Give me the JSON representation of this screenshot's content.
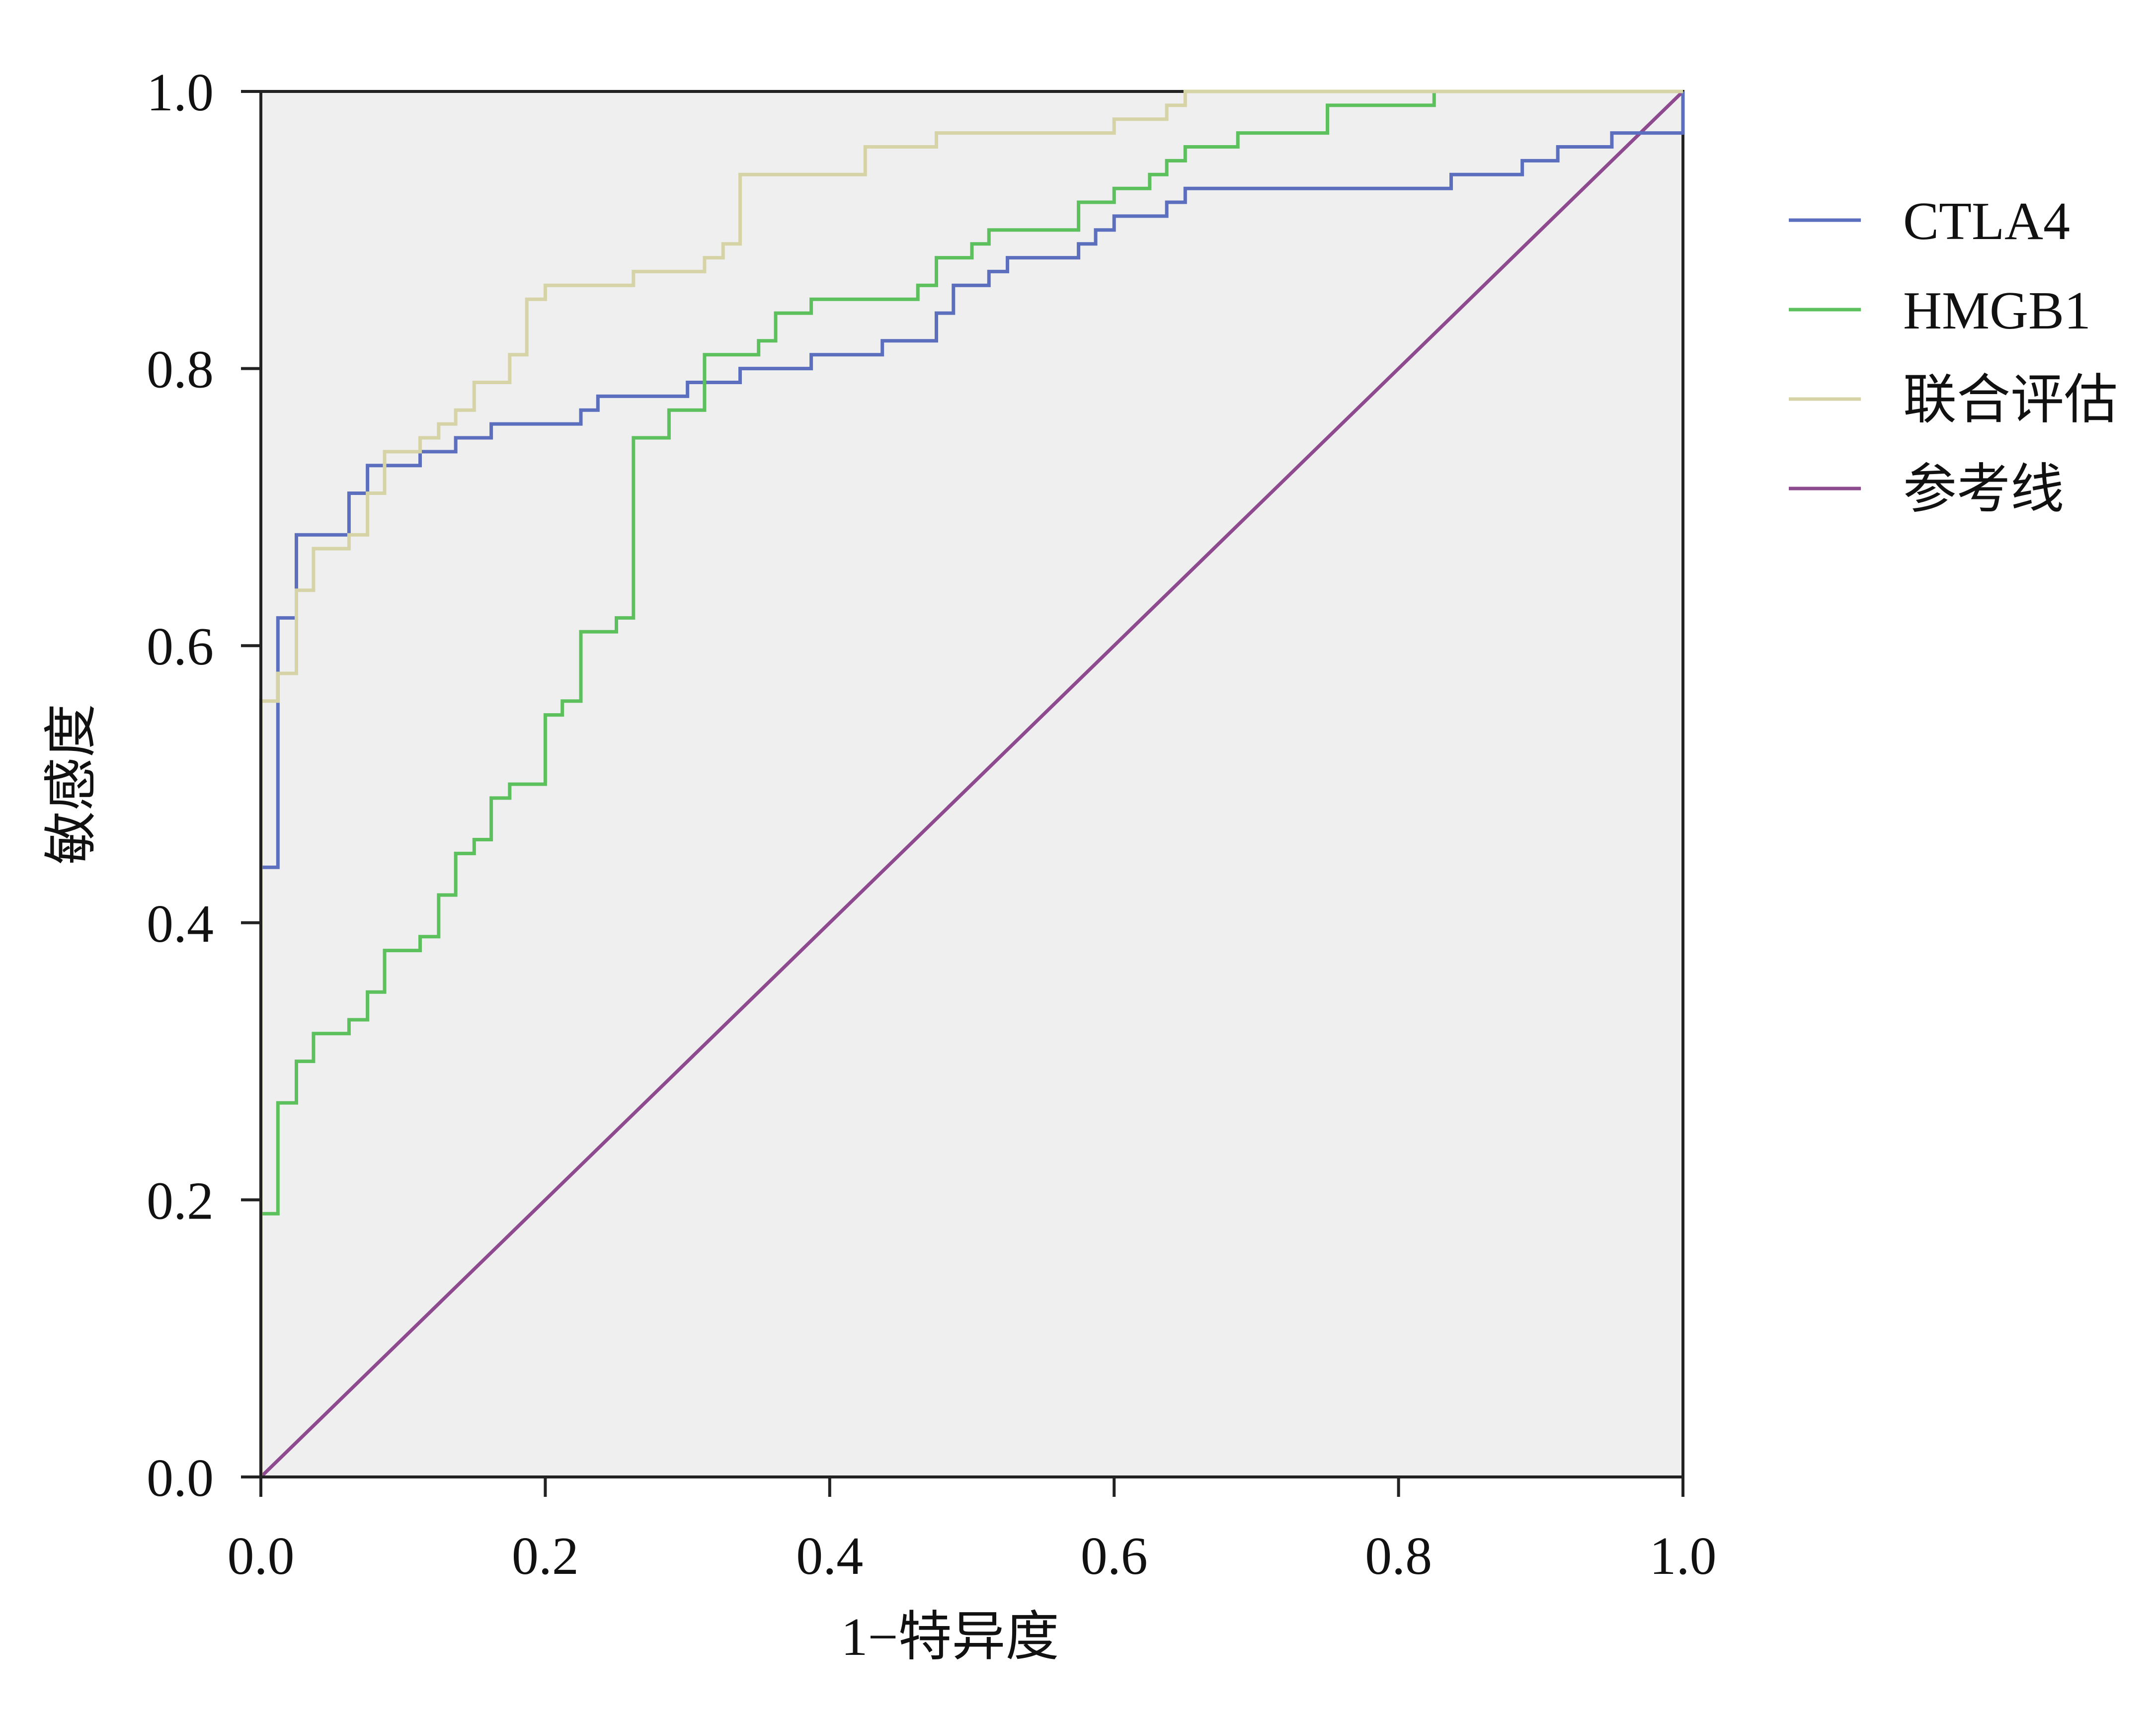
{
  "chart_data": {
    "type": "line",
    "xlabel": "1−特异度",
    "ylabel": "敏感度",
    "xlim": [
      0,
      1
    ],
    "ylim": [
      0,
      1
    ],
    "x_ticks": [
      "0.0",
      "0.2",
      "0.4",
      "0.6",
      "0.8",
      "1.0"
    ],
    "y_ticks": [
      "0.0",
      "0.2",
      "0.4",
      "0.6",
      "0.8",
      "1.0"
    ],
    "grid": false,
    "plot_background": "#efefef",
    "legend_position": "right",
    "series": [
      {
        "name": "CTLA4",
        "color": "#5b6fbe",
        "step": true,
        "x": [
          0,
          0.012,
          0.025,
          0.062,
          0.075,
          0.087,
          0.112,
          0.137,
          0.162,
          0.212,
          0.225,
          0.237,
          0.3,
          0.337,
          0.35,
          0.387,
          0.425,
          0.437,
          0.475,
          0.487,
          0.5,
          0.512,
          0.525,
          0.55,
          0.575,
          0.587,
          0.6,
          0.625,
          0.637,
          0.65,
          0.662,
          0.837,
          0.85,
          0.887,
          0.9,
          0.912,
          0.937,
          0.95,
          0.962,
          0.975,
          1.0
        ],
        "y": [
          0.44,
          0.62,
          0.68,
          0.71,
          0.73,
          0.73,
          0.74,
          0.75,
          0.76,
          0.76,
          0.77,
          0.78,
          0.79,
          0.8,
          0.8,
          0.81,
          0.81,
          0.82,
          0.84,
          0.86,
          0.86,
          0.87,
          0.88,
          0.88,
          0.89,
          0.9,
          0.91,
          0.91,
          0.92,
          0.93,
          0.93,
          0.94,
          0.94,
          0.95,
          0.95,
          0.96,
          0.96,
          0.97,
          0.97,
          0.97,
          1.0
        ]
      },
      {
        "name": "HMGB1",
        "color": "#5cc05c",
        "step": true,
        "x": [
          0,
          0.012,
          0.025,
          0.037,
          0.062,
          0.075,
          0.087,
          0.112,
          0.125,
          0.137,
          0.15,
          0.162,
          0.175,
          0.2,
          0.212,
          0.225,
          0.25,
          0.262,
          0.287,
          0.312,
          0.35,
          0.362,
          0.387,
          0.462,
          0.475,
          0.5,
          0.512,
          0.575,
          0.6,
          0.625,
          0.637,
          0.65,
          0.687,
          0.75,
          0.825,
          1.0
        ],
        "y": [
          0.19,
          0.27,
          0.3,
          0.32,
          0.33,
          0.35,
          0.38,
          0.39,
          0.42,
          0.45,
          0.46,
          0.49,
          0.5,
          0.55,
          0.56,
          0.61,
          0.62,
          0.75,
          0.77,
          0.81,
          0.82,
          0.84,
          0.85,
          0.86,
          0.88,
          0.89,
          0.9,
          0.92,
          0.93,
          0.94,
          0.95,
          0.96,
          0.97,
          0.99,
          1.0,
          1.0
        ]
      },
      {
        "name": "联合评估",
        "color": "#d6d3a6",
        "step": true,
        "x": [
          0,
          0.012,
          0.025,
          0.037,
          0.062,
          0.075,
          0.087,
          0.112,
          0.125,
          0.137,
          0.15,
          0.175,
          0.187,
          0.2,
          0.262,
          0.312,
          0.325,
          0.337,
          0.425,
          0.475,
          0.6,
          0.637,
          0.65,
          0.75,
          1.0
        ],
        "y": [
          0.56,
          0.58,
          0.64,
          0.67,
          0.68,
          0.71,
          0.74,
          0.75,
          0.76,
          0.77,
          0.79,
          0.81,
          0.85,
          0.86,
          0.87,
          0.88,
          0.89,
          0.94,
          0.96,
          0.97,
          0.98,
          0.99,
          1.0,
          1.0,
          1.0
        ]
      },
      {
        "name": "参考线",
        "color": "#8e4a8e",
        "step": false,
        "x": [
          0,
          1
        ],
        "y": [
          0,
          1
        ]
      }
    ]
  }
}
